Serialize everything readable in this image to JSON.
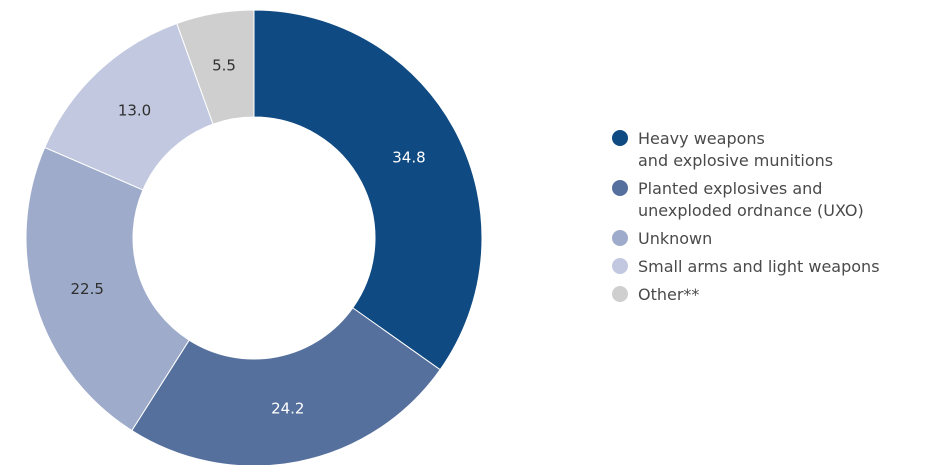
{
  "chart_data": {
    "type": "pie",
    "donut": true,
    "title": "",
    "legend_position": "right",
    "slices": [
      {
        "label": "Heavy weapons\nand explosive munitions",
        "value": 34.8,
        "value_label": "34.8",
        "color": "#0f4a82",
        "label_color": "#ffffff"
      },
      {
        "label": "Planted explosives and\nunexploded ordnance (UXO)",
        "value": 24.2,
        "value_label": "24.2",
        "color": "#56709e",
        "label_color": "#ffffff"
      },
      {
        "label": "Unknown",
        "value": 22.5,
        "value_label": "22.5",
        "color": "#9eabca",
        "label_color": "#2f2f2f"
      },
      {
        "label": "Small arms and light weapons",
        "value": 13.0,
        "value_label": "13.0",
        "color": "#c1c8df",
        "label_color": "#2f2f2f"
      },
      {
        "label": "Other**",
        "value": 5.5,
        "value_label": "5.5",
        "color": "#cfcfcf",
        "label_color": "#2f2f2f"
      }
    ]
  }
}
